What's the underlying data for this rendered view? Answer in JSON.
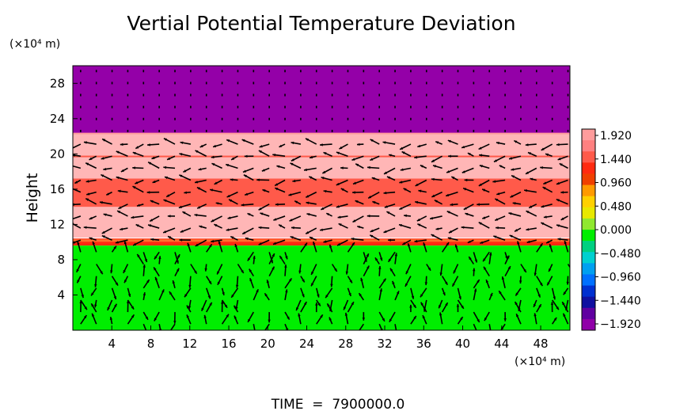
{
  "chart_data": {
    "type": "heatmap",
    "title": "Vertial Potential Temperature Deviation",
    "ylabel": "Height",
    "y_unit": "(×10⁴ m)",
    "x_unit": "(×10⁴ m)",
    "footer": "TIME  =  7900000.0",
    "xlim": [
      0,
      51
    ],
    "ylim": [
      0,
      30
    ],
    "x_ticks": [
      4,
      8,
      12,
      16,
      20,
      24,
      28,
      32,
      36,
      40,
      44,
      48
    ],
    "y_ticks": [
      4,
      8,
      12,
      16,
      20,
      24,
      28
    ],
    "colorbar": {
      "labels": [
        "1.920",
        "1.440",
        "0.960",
        "0.480",
        "0.000",
        "−0.480",
        "−0.960",
        "−1.440",
        "−1.920"
      ],
      "values": [
        1.92,
        1.44,
        0.96,
        0.48,
        0.0,
        -0.48,
        -0.96,
        -1.44,
        -1.92
      ],
      "colors": [
        "#ff9c9c",
        "#ff8080",
        "#ff5a4a",
        "#ff2a10",
        "#f04000",
        "#ff9a00",
        "#ffd000",
        "#e8e800",
        "#90e830",
        "#00ee00",
        "#00d080",
        "#00d0d0",
        "#00a0f0",
        "#0070ff",
        "#0030d0",
        "#1010a0",
        "#6000a0",
        "#9000a8"
      ]
    },
    "layers": [
      {
        "y0": 22.3,
        "y1": 30,
        "color": "#9400a8",
        "value": -1.92
      },
      {
        "y0": 10.5,
        "y1": 22.3,
        "color": "#ffb6b6",
        "value": 1.92
      },
      {
        "y0": 9.6,
        "y1": 10.4,
        "color": "#ff2a10",
        "value": 1.4
      },
      {
        "y0": 14,
        "y1": 17.2,
        "color": "#ff5a4a",
        "value": 1.6
      },
      {
        "y0": 0,
        "y1": 9.6,
        "color": "#00ee00",
        "value": 0.0
      }
    ]
  }
}
